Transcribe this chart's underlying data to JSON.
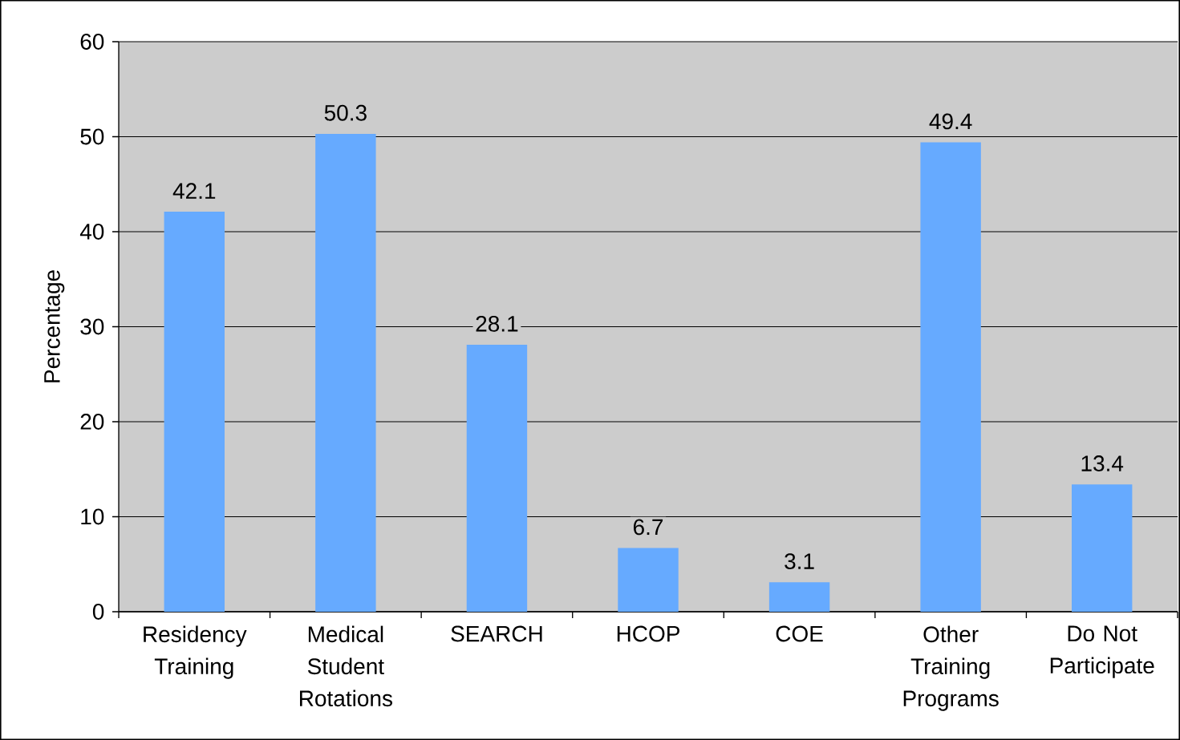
{
  "chart_data": {
    "type": "bar",
    "ylabel": "Percentage",
    "categories": [
      "Residency Training",
      "Medical Student Rotations",
      "SEARCH",
      "HCOP",
      "COE",
      "Other Training Programs",
      "Do Not Participate"
    ],
    "values": [
      42.1,
      50.3,
      28.1,
      6.7,
      3.1,
      49.4,
      13.4
    ],
    "color": "#66aaff",
    "ylim": [
      0,
      60
    ],
    "yticks": [
      0,
      10,
      20,
      30,
      40,
      50,
      60
    ],
    "grid": "y",
    "data_labels": true
  }
}
